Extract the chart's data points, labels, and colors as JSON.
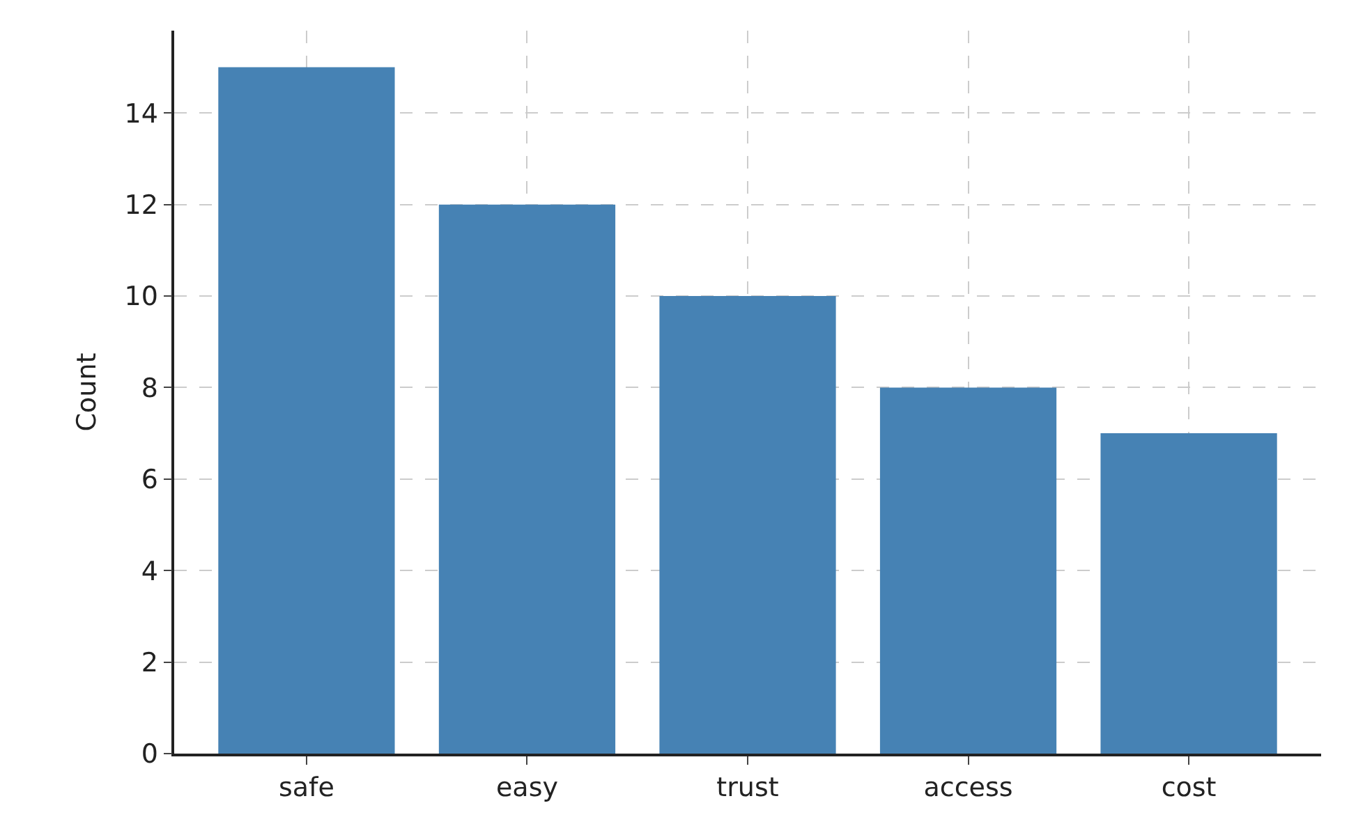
{
  "chart_data": {
    "type": "bar",
    "ylabel": "Count",
    "categories": [
      "safe",
      "easy",
      "trust",
      "access",
      "cost"
    ],
    "values": [
      15,
      12,
      10,
      8,
      7
    ],
    "color": "#4682b4",
    "ylim": [
      0,
      15.8
    ],
    "yticks": [
      0,
      2,
      4,
      6,
      8,
      10,
      12,
      14
    ],
    "grid": true
  }
}
